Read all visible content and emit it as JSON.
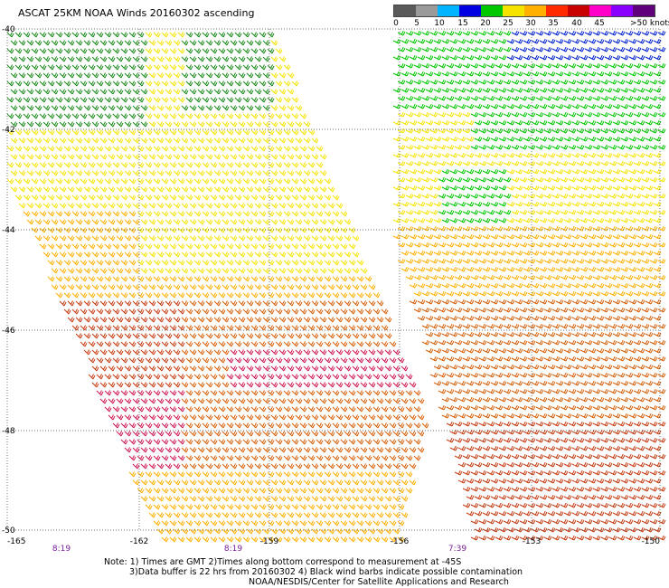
{
  "title": "ASCAT 25KM NOAA Winds 20160302 ascending",
  "color_scale": {
    "labels": [
      "0",
      "5",
      "10",
      "15",
      "20",
      "25",
      "30",
      "35",
      "40",
      "45",
      ">50 knots"
    ],
    "colors": [
      "#5a5a5a",
      "#9a9a9a",
      "#00b4ff",
      "#0000e0",
      "#00c800",
      "#f4e400",
      "#ffb000",
      "#ff2a00",
      "#c80000",
      "#ff00c8",
      "#8a00ff",
      "#60007a"
    ]
  },
  "map": {
    "lat_labels": [
      "-40",
      "-42",
      "-44",
      "-46",
      "-48",
      "-50"
    ],
    "lon_labels": [
      "-165",
      "-162",
      "-159",
      "-156",
      "-153",
      "-150"
    ],
    "time_labels": [
      "8:19",
      "8:19",
      "7:39"
    ],
    "swaths": [
      {
        "name": "western-swath",
        "zones": [
          {
            "color": "#1a8a1a",
            "speed_kt": 15
          },
          {
            "color": "#f4e400",
            "speed_kt": 22
          },
          {
            "color": "#ffb000",
            "speed_kt": 27
          },
          {
            "color": "#d9600a",
            "speed_kt": 32
          },
          {
            "color": "#c83a10",
            "speed_kt": 35
          },
          {
            "color": "#d01850",
            "speed_kt": 38
          },
          {
            "color": "#ffb000",
            "speed_kt": 28
          }
        ]
      },
      {
        "name": "eastern-swath",
        "zones": [
          {
            "color": "#0020d0",
            "speed_kt": 12
          },
          {
            "color": "#00c800",
            "speed_kt": 18
          },
          {
            "color": "#f4e400",
            "speed_kt": 22
          },
          {
            "color": "#ffb000",
            "speed_kt": 27
          },
          {
            "color": "#d9600a",
            "speed_kt": 32
          },
          {
            "color": "#c83a10",
            "speed_kt": 35
          }
        ]
      }
    ]
  },
  "notes": [
    "Note: 1) Times are GMT 2)Times along bottom correspond to measurement at -45S",
    "3)Data buffer is 22 hrs from 20160302 4) Black wind barbs indicate possible contamination",
    "NOAA/NESDIS/Center for Satellite Applications and Research"
  ]
}
